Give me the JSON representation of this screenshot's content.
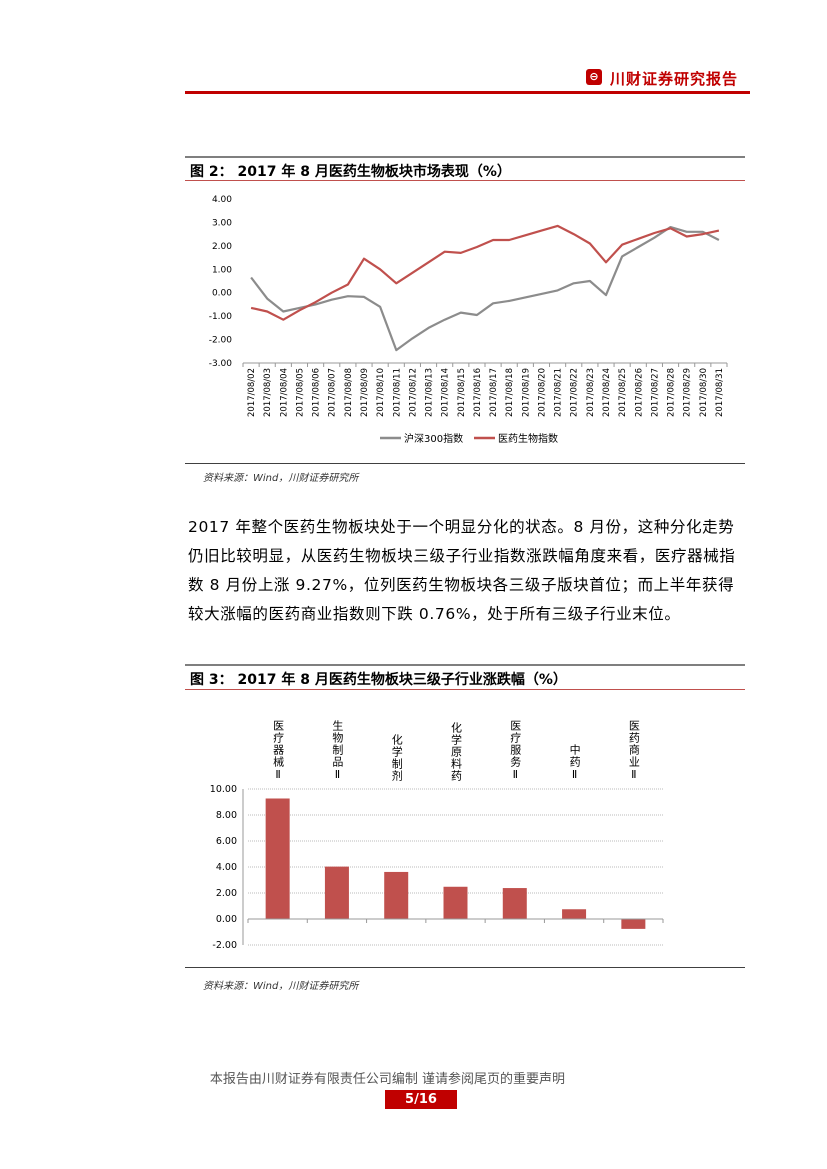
{
  "header": {
    "logo_icon": "chuancai-logo-icon",
    "logo_glyph": "⊖",
    "title": "川财证券研究报告",
    "accent": "#c00000"
  },
  "figure2": {
    "title": "图 2： 2017 年 8 月医药生物板块市场表现（%）",
    "source": "资料来源：Wind，川财证券研究所"
  },
  "paragraph": "2017 年整个医药生物板块处于一个明显分化的状态。8 月份，这种分化走势仍旧比较明显，从医药生物板块三级子行业指数涨跌幅角度来看，医疗器械指数 8 月份上涨 9.27%，位列医药生物板块各三级子版块首位；而上半年获得较大涨幅的医药商业指数则下跌 0.76%，处于所有三级子行业末位。",
  "figure3": {
    "title": "图 3： 2017 年 8 月医药生物板块三级子行业涨跌幅（%）",
    "source": "资料来源：Wind，川财证券研究所"
  },
  "chart_data": [
    {
      "type": "line",
      "title": "",
      "x": [
        "2017/08/02",
        "2017/08/03",
        "2017/08/04",
        "2017/08/05",
        "2017/08/06",
        "2017/08/07",
        "2017/08/08",
        "2017/08/09",
        "2017/08/10",
        "2017/08/11",
        "2017/08/12",
        "2017/08/13",
        "2017/08/14",
        "2017/08/15",
        "2017/08/16",
        "2017/08/17",
        "2017/08/18",
        "2017/08/19",
        "2017/08/20",
        "2017/08/21",
        "2017/08/22",
        "2017/08/23",
        "2017/08/24",
        "2017/08/25",
        "2017/08/26",
        "2017/08/27",
        "2017/08/28",
        "2017/08/29",
        "2017/08/30",
        "2017/08/31"
      ],
      "ylim": [
        -3,
        4
      ],
      "yticks": [
        "4.00",
        "3.00",
        "2.00",
        "1.00",
        "0.00",
        "-1.00",
        "-2.00",
        "-3.00"
      ],
      "grid": false,
      "legend": "bottom",
      "series": [
        {
          "name": "沪深300指数",
          "color": "#8c8c8c",
          "values": [
            0.65,
            -0.25,
            -0.8,
            -0.65,
            -0.5,
            -0.3,
            -0.15,
            -0.18,
            -0.6,
            -2.45,
            -1.95,
            -1.5,
            -1.15,
            -0.85,
            -0.95,
            -0.45,
            -0.35,
            -0.2,
            -0.05,
            0.1,
            0.4,
            0.5,
            -0.1,
            1.55,
            1.95,
            2.35,
            2.8,
            2.6,
            2.6,
            2.25
          ]
        },
        {
          "name": "医药生物指数",
          "color": "#c0504d",
          "values": [
            -0.65,
            -0.8,
            -1.15,
            -0.75,
            -0.4,
            0.0,
            0.35,
            1.45,
            1.0,
            0.4,
            0.85,
            1.3,
            1.75,
            1.7,
            1.95,
            2.25,
            2.25,
            2.45,
            2.65,
            2.85,
            2.5,
            2.1,
            1.3,
            2.05,
            2.3,
            2.55,
            2.75,
            2.4,
            2.5,
            2.65
          ]
        }
      ]
    },
    {
      "type": "bar",
      "title": "",
      "categories": [
        "医疗器械Ⅱ",
        "生物制品Ⅱ",
        "化学制剂",
        "化学原料药",
        "医疗服务Ⅱ",
        "中药Ⅱ",
        "医药商业Ⅱ"
      ],
      "values": [
        9.27,
        4.03,
        3.62,
        2.48,
        2.38,
        0.75,
        -0.76
      ],
      "ylim": [
        -2,
        10
      ],
      "yticks": [
        "10.00",
        "8.00",
        "6.00",
        "4.00",
        "2.00",
        "0.00",
        "-2.00"
      ],
      "grid": true,
      "color": "#c0504d"
    }
  ],
  "footer": {
    "statement": "本报告由川财证券有限责任公司编制  谨请参阅尾页的重要声明",
    "page": "5/16"
  }
}
